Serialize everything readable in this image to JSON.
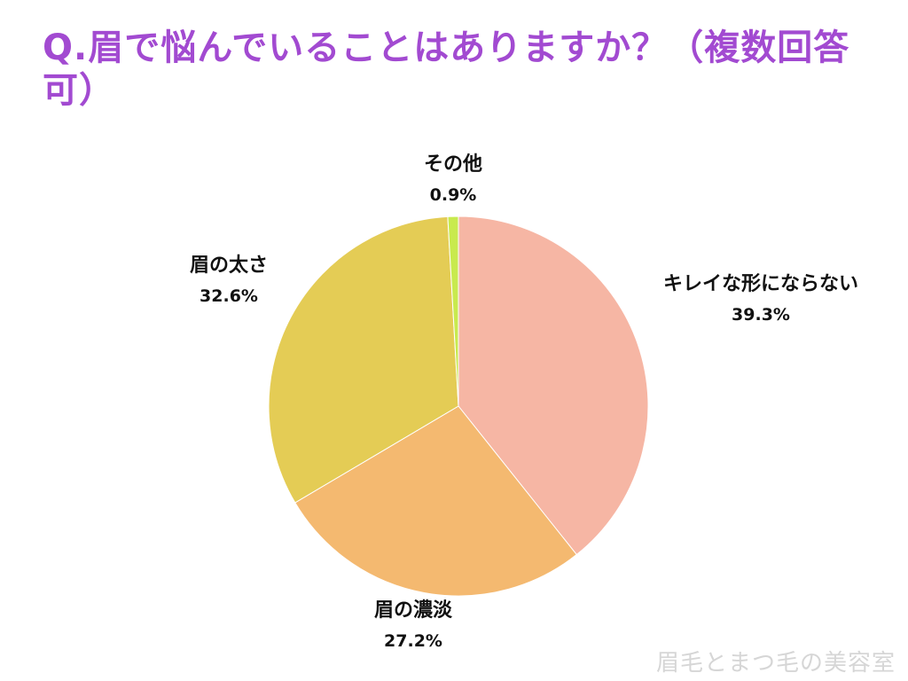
{
  "page": {
    "title": "Q.眉で悩んでいることはありますか？（複数回答可）",
    "watermark": "眉毛とまつ毛の美容室"
  },
  "chart_data": {
    "type": "pie",
    "title": "Q.眉で悩んでいることはありますか？（複数回答可）",
    "start_angle_deg": 0,
    "direction": "clockwise",
    "slices": [
      {
        "label": "キレイな形にならない",
        "value": 39.3,
        "value_label": "39.3%",
        "color": "#f6b6a4"
      },
      {
        "label": "眉の濃淡",
        "value": 27.2,
        "value_label": "27.2%",
        "color": "#f4b970"
      },
      {
        "label": "眉の太さ",
        "value": 32.6,
        "value_label": "32.6%",
        "color": "#e4cc55"
      },
      {
        "label": "その他",
        "value": 0.9,
        "value_label": "0.9%",
        "color": "#c8ea4e"
      }
    ]
  }
}
